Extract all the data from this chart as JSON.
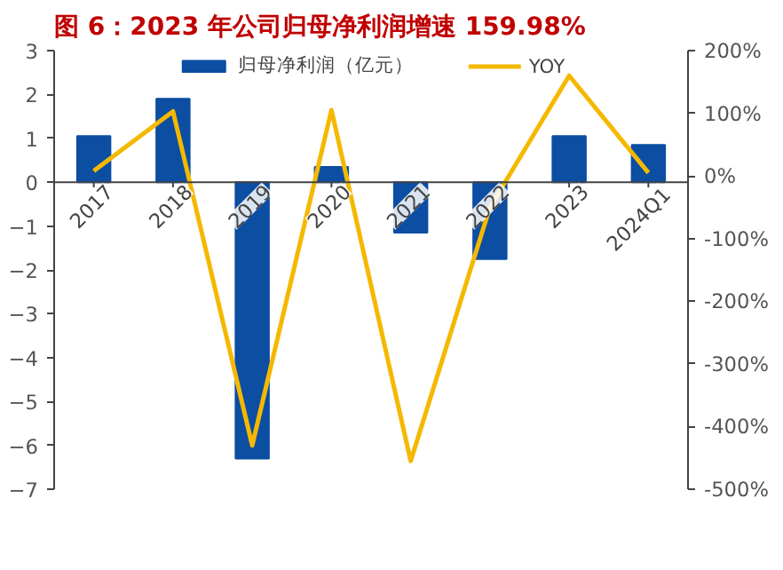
{
  "chart_data": {
    "type": "bar",
    "title": "图 6：2023 年公司归母净利润增速 159.98%",
    "categories": [
      "2017",
      "2018",
      "2019",
      "2020",
      "2021",
      "2022",
      "2023",
      "2024Q1"
    ],
    "series": [
      {
        "name": "归母净利润（亿元）",
        "color": "#0b4ea2",
        "values": [
          1.05,
          1.9,
          -6.3,
          0.35,
          -1.15,
          -1.75,
          1.05,
          0.85
        ]
      },
      {
        "name": "YOY",
        "type": "line",
        "axis": "y2",
        "color": "#f5b800",
        "values": [
          8,
          103,
          -430,
          105,
          -455,
          -50,
          160,
          5
        ]
      }
    ],
    "ylim": [
      -7,
      3
    ],
    "yticks": [
      -7,
      -6,
      -5,
      -4,
      -3,
      -2,
      -1,
      0,
      1,
      2,
      3
    ],
    "y2lim": [
      -500,
      200
    ],
    "y2ticks": [
      {
        "value": -500,
        "label": "-500%"
      },
      {
        "value": -400,
        "label": "-400%"
      },
      {
        "value": -300,
        "label": "-300%"
      },
      {
        "value": -200,
        "label": "-200%"
      },
      {
        "value": -100,
        "label": "-100%"
      },
      {
        "value": 0,
        "label": "0%"
      },
      {
        "value": 100,
        "label": "100%"
      },
      {
        "value": 200,
        "label": "200%"
      }
    ],
    "legend": "top",
    "grid": false
  }
}
